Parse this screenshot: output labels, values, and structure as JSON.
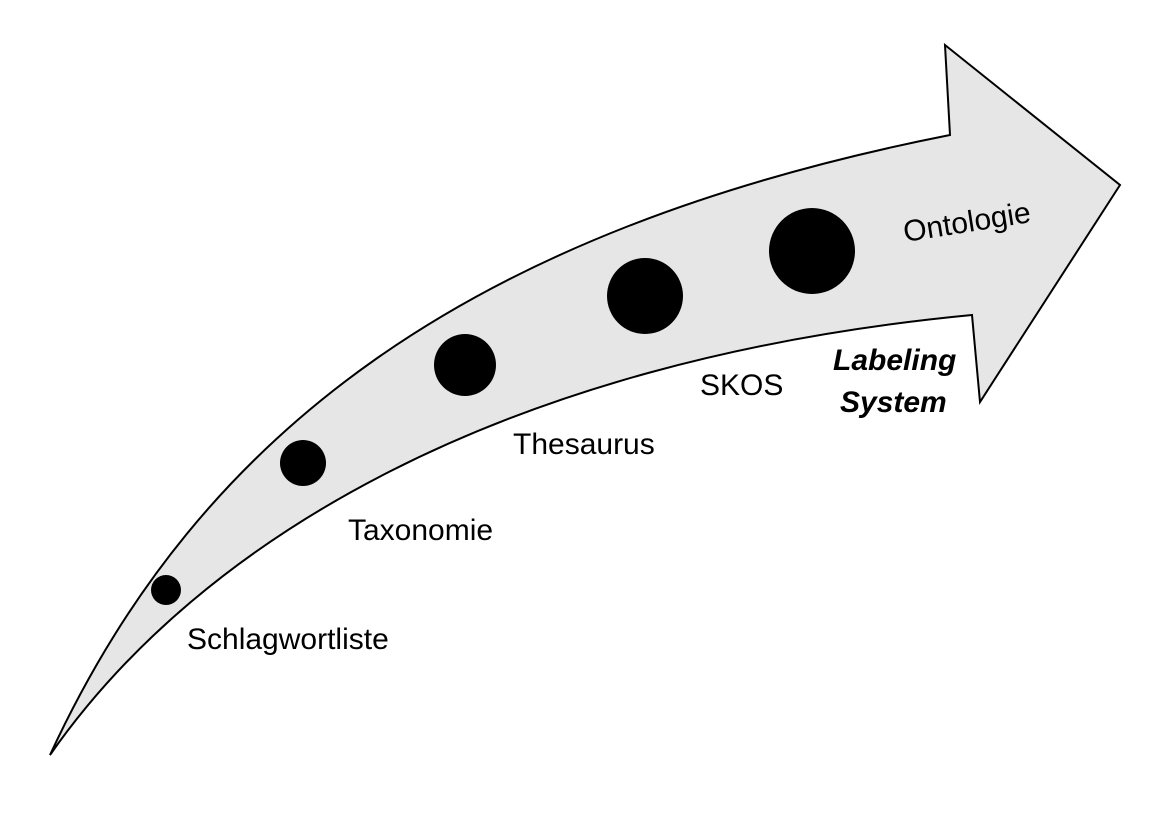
{
  "colors": {
    "arrow_fill": "#e6e6e6",
    "arrow_stroke": "#000000",
    "dot_fill": "#000000",
    "text": "#000000"
  },
  "stages": [
    {
      "label": "Schlagwortliste",
      "level": 1
    },
    {
      "label": "Taxonomie",
      "level": 2
    },
    {
      "label": "Thesaurus",
      "level": 3
    },
    {
      "label": "SKOS",
      "level": 4
    },
    {
      "label": "Ontologie",
      "level": 5
    }
  ],
  "emphasis_label": {
    "line1": "Labeling",
    "line2": "System"
  }
}
